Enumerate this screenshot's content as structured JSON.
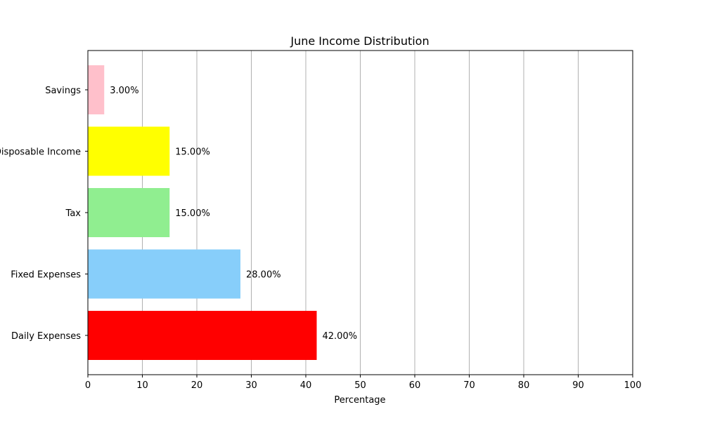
{
  "chart_data": {
    "type": "bar",
    "orientation": "horizontal",
    "title": "June Income Distribution",
    "xlabel": "Percentage",
    "ylabel": "",
    "xlim": [
      0,
      100
    ],
    "xticks": [
      0,
      10,
      20,
      30,
      40,
      50,
      60,
      70,
      80,
      90,
      100
    ],
    "grid": "vertical",
    "categories": [
      "Daily Expenses",
      "Fixed Expenses",
      "Tax",
      "Disposable Income",
      "Savings"
    ],
    "values": [
      42,
      28,
      15,
      15,
      3
    ],
    "data_labels": [
      "42.00%",
      "28.00%",
      "15.00%",
      "15.00%",
      "3.00%"
    ],
    "colors": [
      "#ff0000",
      "#87cefa",
      "#90ee90",
      "#ffff00",
      "#ffc0cb"
    ]
  }
}
